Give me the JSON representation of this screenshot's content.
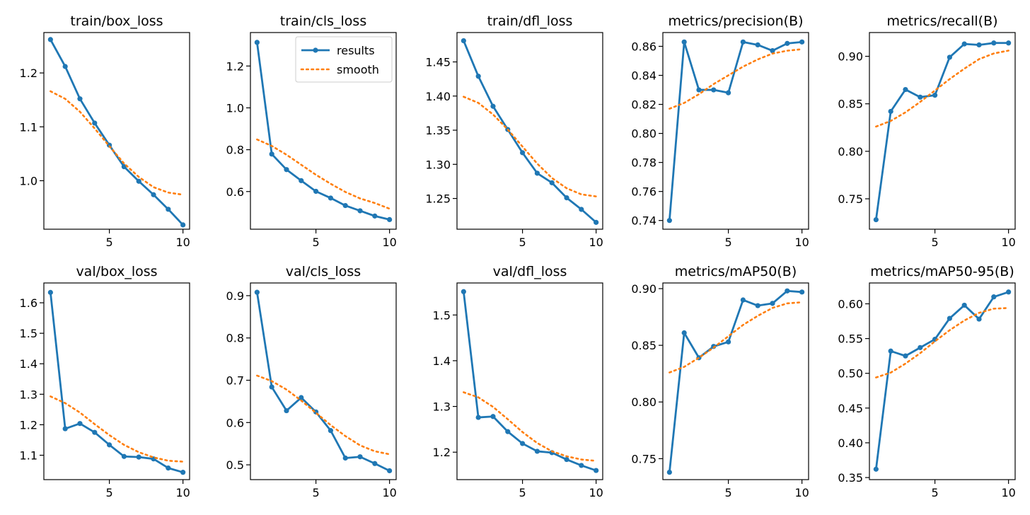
{
  "colors": {
    "results": "#1f77b4",
    "smooth": "#ff7f0e",
    "axes": "#000000",
    "background": "#ffffff"
  },
  "legend": {
    "results_label": "results",
    "smooth_label": "smooth",
    "placement": "top-right",
    "panel": 1
  },
  "chart_data": [
    {
      "type": "line",
      "title": "train/box_loss",
      "x": [
        1,
        2,
        3,
        4,
        5,
        6,
        7,
        8,
        9,
        10
      ],
      "xlim": [
        0.55,
        10.45
      ],
      "xticks": [
        5,
        10
      ],
      "ylim": [
        0.91,
        1.275
      ],
      "yticks": [
        1.0,
        1.1,
        1.2
      ],
      "ytick_labels": [
        "1.0",
        "1.1",
        "1.2"
      ],
      "series": [
        {
          "name": "results",
          "values": [
            1.262,
            1.212,
            1.152,
            1.107,
            1.066,
            1.026,
            0.999,
            0.974,
            0.947,
            0.918
          ]
        },
        {
          "name": "smooth",
          "values": [
            1.166,
            1.152,
            1.128,
            1.097,
            1.064,
            1.032,
            1.007,
            0.988,
            0.978,
            0.974
          ]
        }
      ]
    },
    {
      "type": "line",
      "title": "train/cls_loss",
      "x": [
        1,
        2,
        3,
        4,
        5,
        6,
        7,
        8,
        9,
        10
      ],
      "xlim": [
        0.55,
        10.45
      ],
      "xticks": [
        5,
        10
      ],
      "ylim": [
        0.42,
        1.36
      ],
      "yticks": [
        0.6,
        0.8,
        1.0,
        1.2
      ],
      "ytick_labels": [
        "0.6",
        "0.8",
        "1.0",
        "1.2"
      ],
      "series": [
        {
          "name": "results",
          "values": [
            1.313,
            0.779,
            0.705,
            0.652,
            0.601,
            0.569,
            0.533,
            0.508,
            0.483,
            0.466
          ]
        },
        {
          "name": "smooth",
          "values": [
            0.849,
            0.818,
            0.776,
            0.728,
            0.68,
            0.637,
            0.598,
            0.567,
            0.545,
            0.518
          ]
        }
      ]
    },
    {
      "type": "line",
      "title": "train/dfl_loss",
      "x": [
        1,
        2,
        3,
        4,
        5,
        6,
        7,
        8,
        9,
        10
      ],
      "xlim": [
        0.55,
        10.45
      ],
      "xticks": [
        5,
        10
      ],
      "ylim": [
        1.205,
        1.493
      ],
      "yticks": [
        1.25,
        1.3,
        1.35,
        1.4,
        1.45
      ],
      "ytick_labels": [
        "1.25",
        "1.30",
        "1.35",
        "1.40",
        "1.45"
      ],
      "series": [
        {
          "name": "results",
          "values": [
            1.481,
            1.429,
            1.385,
            1.351,
            1.317,
            1.287,
            1.273,
            1.251,
            1.234,
            1.215
          ]
        },
        {
          "name": "smooth",
          "values": [
            1.399,
            1.39,
            1.373,
            1.351,
            1.326,
            1.301,
            1.28,
            1.265,
            1.256,
            1.253
          ]
        }
      ]
    },
    {
      "type": "line",
      "title": "metrics/precision(B)",
      "x": [
        1,
        2,
        3,
        4,
        5,
        6,
        7,
        8,
        9,
        10
      ],
      "xlim": [
        0.55,
        10.45
      ],
      "xticks": [
        5,
        10
      ],
      "ylim": [
        0.734,
        0.8695
      ],
      "yticks": [
        0.74,
        0.76,
        0.78,
        0.8,
        0.82,
        0.84,
        0.86
      ],
      "ytick_labels": [
        "0.74",
        "0.76",
        "0.78",
        "0.80",
        "0.82",
        "0.84",
        "0.86"
      ],
      "series": [
        {
          "name": "results",
          "values": [
            0.74,
            0.863,
            0.83,
            0.83,
            0.828,
            0.863,
            0.861,
            0.857,
            0.862,
            0.863
          ]
        },
        {
          "name": "smooth",
          "values": [
            0.817,
            0.821,
            0.827,
            0.834,
            0.84,
            0.846,
            0.851,
            0.855,
            0.857,
            0.858
          ]
        }
      ]
    },
    {
      "type": "line",
      "title": "metrics/recall(B)",
      "x": [
        1,
        2,
        3,
        4,
        5,
        6,
        7,
        8,
        9,
        10
      ],
      "xlim": [
        0.55,
        10.45
      ],
      "xticks": [
        5,
        10
      ],
      "ylim": [
        0.718,
        0.925
      ],
      "yticks": [
        0.75,
        0.8,
        0.85,
        0.9
      ],
      "ytick_labels": [
        "0.75",
        "0.80",
        "0.85",
        "0.90"
      ],
      "series": [
        {
          "name": "results",
          "values": [
            0.728,
            0.842,
            0.865,
            0.857,
            0.859,
            0.899,
            0.913,
            0.912,
            0.914,
            0.914
          ]
        },
        {
          "name": "smooth",
          "values": [
            0.826,
            0.832,
            0.841,
            0.852,
            0.864,
            0.876,
            0.887,
            0.897,
            0.903,
            0.906
          ]
        }
      ]
    },
    {
      "type": "line",
      "title": "val/box_loss",
      "x": [
        1,
        2,
        3,
        4,
        5,
        6,
        7,
        8,
        9,
        10
      ],
      "xlim": [
        0.55,
        10.45
      ],
      "xticks": [
        5,
        10
      ],
      "ylim": [
        1.02,
        1.665
      ],
      "yticks": [
        1.1,
        1.2,
        1.3,
        1.4,
        1.5,
        1.6
      ],
      "ytick_labels": [
        "1.1",
        "1.2",
        "1.3",
        "1.4",
        "1.5",
        "1.6"
      ],
      "series": [
        {
          "name": "results",
          "values": [
            1.634,
            1.187,
            1.204,
            1.175,
            1.134,
            1.096,
            1.094,
            1.088,
            1.058,
            1.044
          ]
        },
        {
          "name": "smooth",
          "values": [
            1.293,
            1.271,
            1.24,
            1.202,
            1.166,
            1.134,
            1.11,
            1.093,
            1.082,
            1.079
          ]
        }
      ]
    },
    {
      "type": "line",
      "title": "val/cls_loss",
      "x": [
        1,
        2,
        3,
        4,
        5,
        6,
        7,
        8,
        9,
        10
      ],
      "xlim": [
        0.55,
        10.45
      ],
      "xticks": [
        5,
        10
      ],
      "ylim": [
        0.465,
        0.93
      ],
      "yticks": [
        0.5,
        0.6,
        0.7,
        0.8,
        0.9
      ],
      "ytick_labels": [
        "0.5",
        "0.6",
        "0.7",
        "0.8",
        "0.9"
      ],
      "series": [
        {
          "name": "results",
          "values": [
            0.908,
            0.684,
            0.628,
            0.659,
            0.625,
            0.581,
            0.516,
            0.519,
            0.503,
            0.486
          ]
        },
        {
          "name": "smooth",
          "values": [
            0.711,
            0.698,
            0.678,
            0.652,
            0.623,
            0.594,
            0.568,
            0.546,
            0.532,
            0.525
          ]
        }
      ]
    },
    {
      "type": "line",
      "title": "val/dfl_loss",
      "x": [
        1,
        2,
        3,
        4,
        5,
        6,
        7,
        8,
        9,
        10
      ],
      "xlim": [
        0.55,
        10.45
      ],
      "xticks": [
        5,
        10
      ],
      "ylim": [
        1.14,
        1.57
      ],
      "yticks": [
        1.2,
        1.3,
        1.4,
        1.5
      ],
      "ytick_labels": [
        "1.2",
        "1.3",
        "1.4",
        "1.5"
      ],
      "series": [
        {
          "name": "results",
          "values": [
            1.551,
            1.276,
            1.278,
            1.245,
            1.219,
            1.202,
            1.199,
            1.184,
            1.171,
            1.16
          ]
        },
        {
          "name": "smooth",
          "values": [
            1.331,
            1.32,
            1.299,
            1.272,
            1.244,
            1.22,
            1.202,
            1.191,
            1.184,
            1.181
          ]
        }
      ]
    },
    {
      "type": "line",
      "title": "metrics/mAP50(B)",
      "x": [
        1,
        2,
        3,
        4,
        5,
        6,
        7,
        8,
        9,
        10
      ],
      "xlim": [
        0.55,
        10.45
      ],
      "xticks": [
        5,
        10
      ],
      "ylim": [
        0.7315,
        0.905
      ],
      "yticks": [
        0.75,
        0.8,
        0.85,
        0.9
      ],
      "ytick_labels": [
        "0.75",
        "0.80",
        "0.85",
        "0.90"
      ],
      "series": [
        {
          "name": "results",
          "values": [
            0.738,
            0.861,
            0.839,
            0.849,
            0.853,
            0.89,
            0.885,
            0.887,
            0.898,
            0.897
          ]
        },
        {
          "name": "smooth",
          "values": [
            0.826,
            0.831,
            0.839,
            0.848,
            0.858,
            0.868,
            0.876,
            0.883,
            0.887,
            0.888
          ]
        }
      ]
    },
    {
      "type": "line",
      "title": "metrics/mAP50-95(B)",
      "x": [
        1,
        2,
        3,
        4,
        5,
        6,
        7,
        8,
        9,
        10
      ],
      "xlim": [
        0.55,
        10.45
      ],
      "xticks": [
        5,
        10
      ],
      "ylim": [
        0.347,
        0.63
      ],
      "yticks": [
        0.35,
        0.4,
        0.45,
        0.5,
        0.55,
        0.6
      ],
      "ytick_labels": [
        "0.35",
        "0.40",
        "0.45",
        "0.50",
        "0.55",
        "0.60"
      ],
      "series": [
        {
          "name": "results",
          "values": [
            0.362,
            0.532,
            0.525,
            0.537,
            0.549,
            0.579,
            0.598,
            0.578,
            0.61,
            0.617
          ]
        },
        {
          "name": "smooth",
          "values": [
            0.494,
            0.501,
            0.514,
            0.529,
            0.546,
            0.562,
            0.576,
            0.587,
            0.593,
            0.594
          ]
        }
      ]
    }
  ]
}
